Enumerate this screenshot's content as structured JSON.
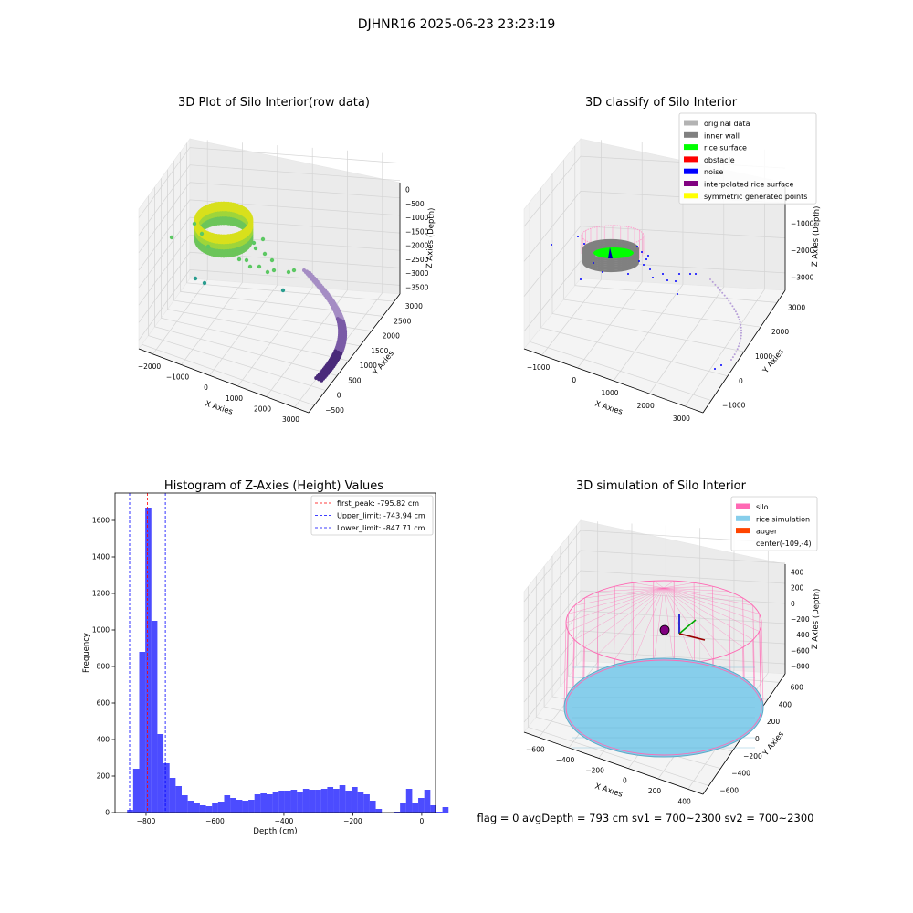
{
  "suptitle": "DJHNR16 2025-06-23 23:23:19",
  "footer": "flag = 0     avgDepth = 793 cm  sv1 = 700~2300  sv2 = 700~2300",
  "chart_data": [
    {
      "type": "scatter",
      "projection": "3d",
      "title": "3D Plot of Silo Interior(row data)",
      "xlabel": "X Axies",
      "ylabel": "Y Axies",
      "zlabel": "Z Axies (Depth)",
      "xticks": [
        "−2000",
        "−1000",
        "0",
        "1000",
        "2000",
        "3000"
      ],
      "yticks": [
        "−500",
        "0",
        "500",
        "1000",
        "1500",
        "2000",
        "2500",
        "3000"
      ],
      "zticks": [
        "0",
        "−500",
        "−1000",
        "−1500",
        "−2000",
        "−2500",
        "−3000",
        "−3500"
      ],
      "grid": true,
      "colormap": "viridis"
    },
    {
      "type": "scatter",
      "projection": "3d",
      "title": "3D classify of Silo Interior",
      "xlabel": "X Axies",
      "ylabel": "Y Axies",
      "zlabel": "Z Axies (Depth)",
      "xticks": [
        "−1000",
        "0",
        "1000",
        "2000",
        "3000"
      ],
      "yticks": [
        "−1000",
        "0",
        "1000",
        "2000",
        "3000"
      ],
      "zticks": [
        "0",
        "−1000",
        "−2000",
        "−3000"
      ],
      "grid": true,
      "legend_position": "top-right",
      "legend": [
        {
          "name": "original data",
          "color": "#b3b3b3"
        },
        {
          "name": "inner wall",
          "color": "#808080"
        },
        {
          "name": "rice surface",
          "color": "#00ff00"
        },
        {
          "name": "obstacle",
          "color": "#ff0000"
        },
        {
          "name": "noise",
          "color": "#0000ff"
        },
        {
          "name": "interpolated rice surface",
          "color": "#800080"
        },
        {
          "name": "symmetric generated points",
          "color": "#ffff00"
        }
      ]
    },
    {
      "type": "bar",
      "title": "Histogram of Z-Axies (Height) Values",
      "xlabel": "Depth (cm)",
      "ylabel": "Frequency",
      "xlim": [
        -890,
        40
      ],
      "ylim": [
        0,
        1750
      ],
      "xticks": [
        -800,
        -600,
        -400,
        -200,
        0
      ],
      "yticks": [
        0,
        200,
        400,
        600,
        800,
        1000,
        1200,
        1400,
        1600
      ],
      "bin_width": 17.6,
      "bin_start": -855,
      "bar_color": "#0000ff",
      "bar_alpha": 0.7,
      "values": [
        15,
        240,
        880,
        1670,
        1050,
        430,
        270,
        190,
        145,
        95,
        65,
        50,
        40,
        35,
        50,
        60,
        95,
        80,
        70,
        65,
        70,
        100,
        105,
        100,
        115,
        120,
        120,
        125,
        115,
        130,
        125,
        125,
        130,
        140,
        130,
        150,
        120,
        140,
        110,
        100,
        65,
        20,
        0,
        0,
        5,
        55,
        130,
        55,
        80,
        125,
        40,
        5,
        30
      ],
      "vlines": [
        {
          "label": "first_peak: -795.82 cm",
          "x": -795.82,
          "color": "#ff0000",
          "style": "dashed"
        },
        {
          "label": "Upper_limit: -743.94 cm",
          "x": -743.94,
          "color": "#0000ff",
          "style": "dashed"
        },
        {
          "label": "Lower_limit: -847.71 cm",
          "x": -847.71,
          "color": "#0000ff",
          "style": "dashed"
        }
      ],
      "legend_position": "top-right"
    },
    {
      "type": "scatter",
      "projection": "3d",
      "title": "3D simulation of Silo Interior",
      "xlabel": "X Axies",
      "ylabel": "Y Axies",
      "zlabel": "Z Axies (Depth)",
      "xticks": [
        "−600",
        "−400",
        "−200",
        "0",
        "200",
        "400"
      ],
      "yticks": [
        "−600",
        "−400",
        "−200",
        "0",
        "200",
        "400",
        "600"
      ],
      "zticks": [
        "400",
        "200",
        "0",
        "−200",
        "−400",
        "−600",
        "−800"
      ],
      "grid": true,
      "legend_position": "top-right",
      "legend": [
        {
          "name": "silo",
          "color": "#ff69b4"
        },
        {
          "name": "rice simulation",
          "color": "#87ceeb"
        },
        {
          "name": "auger",
          "color": "#ff4500"
        },
        {
          "name": "center(-109,-4)",
          "color": ""
        }
      ]
    }
  ]
}
